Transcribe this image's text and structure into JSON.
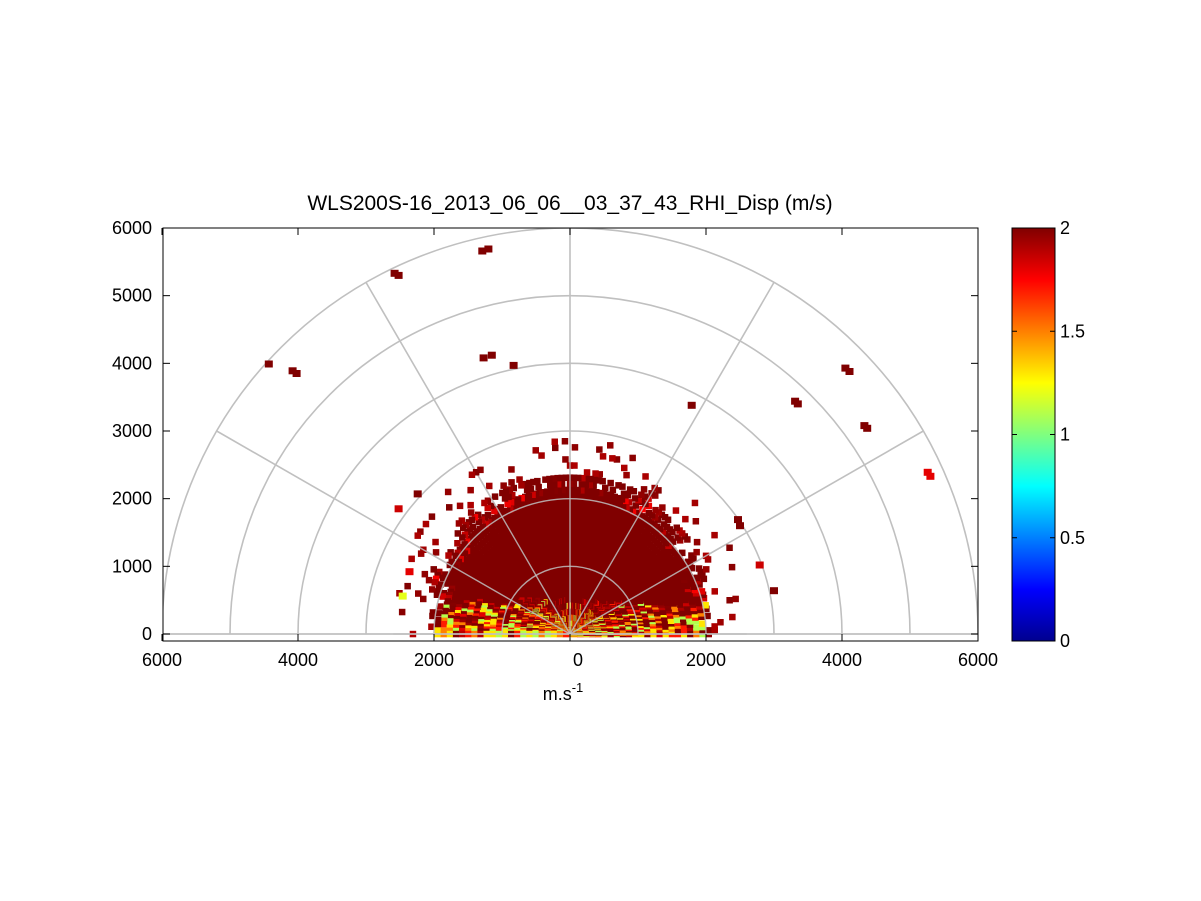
{
  "chart_data": {
    "type": "heatmap",
    "subtype": "polar-rhi",
    "title": "WLS200S-16_2013_06_06__03_37_43_RHI_Disp (m/s)",
    "xlabel": {
      "base": "m.s",
      "sup": "-1"
    },
    "ylabel": "",
    "xlim": [
      -6000,
      6000
    ],
    "ylim": [
      0,
      6000
    ],
    "x_tick_values": [
      -6000,
      -4000,
      -2000,
      0,
      2000,
      4000,
      6000
    ],
    "x_tick_labels": [
      "6000",
      "4000",
      "2000",
      "0",
      "2000",
      "4000",
      "6000"
    ],
    "y_tick_values": [
      0,
      1000,
      2000,
      3000,
      4000,
      5000,
      6000
    ],
    "y_tick_labels": [
      "0",
      "1000",
      "2000",
      "3000",
      "4000",
      "5000",
      "6000"
    ],
    "polar_rings": [
      1000,
      2000,
      3000,
      4000,
      5000,
      6000
    ],
    "polar_spokes_deg": [
      0,
      30,
      60,
      90,
      120,
      150,
      180
    ],
    "grid": true,
    "colormap": "jet",
    "colorbar": {
      "min": 0,
      "max": 2,
      "tick_values": [
        0,
        0.5,
        1,
        1.5,
        2
      ],
      "tick_labels": [
        "0",
        "0.5",
        "1",
        "1.5",
        "2"
      ],
      "placement": "right"
    },
    "colors": {
      "grid": "#c0c0c0",
      "axes": "#000000",
      "background": "#ffffff"
    },
    "core_region": {
      "min_range": 0,
      "max_range": 2000,
      "value": 2,
      "max_range_center": 2600
    },
    "low_value_band": {
      "max_range": 2200,
      "max_height": 500,
      "values": [
        1.1,
        1.3,
        1.5,
        1.7
      ]
    },
    "scattered_cells": [
      [
        -2580,
        5330,
        2
      ],
      [
        -2520,
        5300,
        2
      ],
      [
        -1200,
        5690,
        2
      ],
      [
        -1290,
        5660,
        2
      ],
      [
        -4430,
        3990,
        2
      ],
      [
        -4080,
        3890,
        2
      ],
      [
        -4020,
        3850,
        2
      ],
      [
        -1270,
        4080,
        2
      ],
      [
        -1150,
        4120,
        2
      ],
      [
        -830,
        3970,
        2
      ],
      [
        4050,
        3930,
        2
      ],
      [
        4110,
        3880,
        2
      ],
      [
        3310,
        3440,
        2
      ],
      [
        3350,
        3400,
        2
      ],
      [
        4330,
        3080,
        2
      ],
      [
        4370,
        3040,
        2
      ],
      [
        5260,
        2390,
        1.8
      ],
      [
        5300,
        2330,
        1.8
      ],
      [
        1790,
        3380,
        2
      ],
      [
        -2520,
        1850,
        1.85
      ],
      [
        -2240,
        2070,
        2
      ],
      [
        2790,
        1020,
        1.85
      ],
      [
        3000,
        640,
        2
      ],
      [
        2470,
        1690,
        2
      ],
      [
        2500,
        1600,
        2
      ],
      [
        -2360,
        920,
        1.8
      ],
      [
        -2460,
        560,
        1.2
      ]
    ]
  }
}
